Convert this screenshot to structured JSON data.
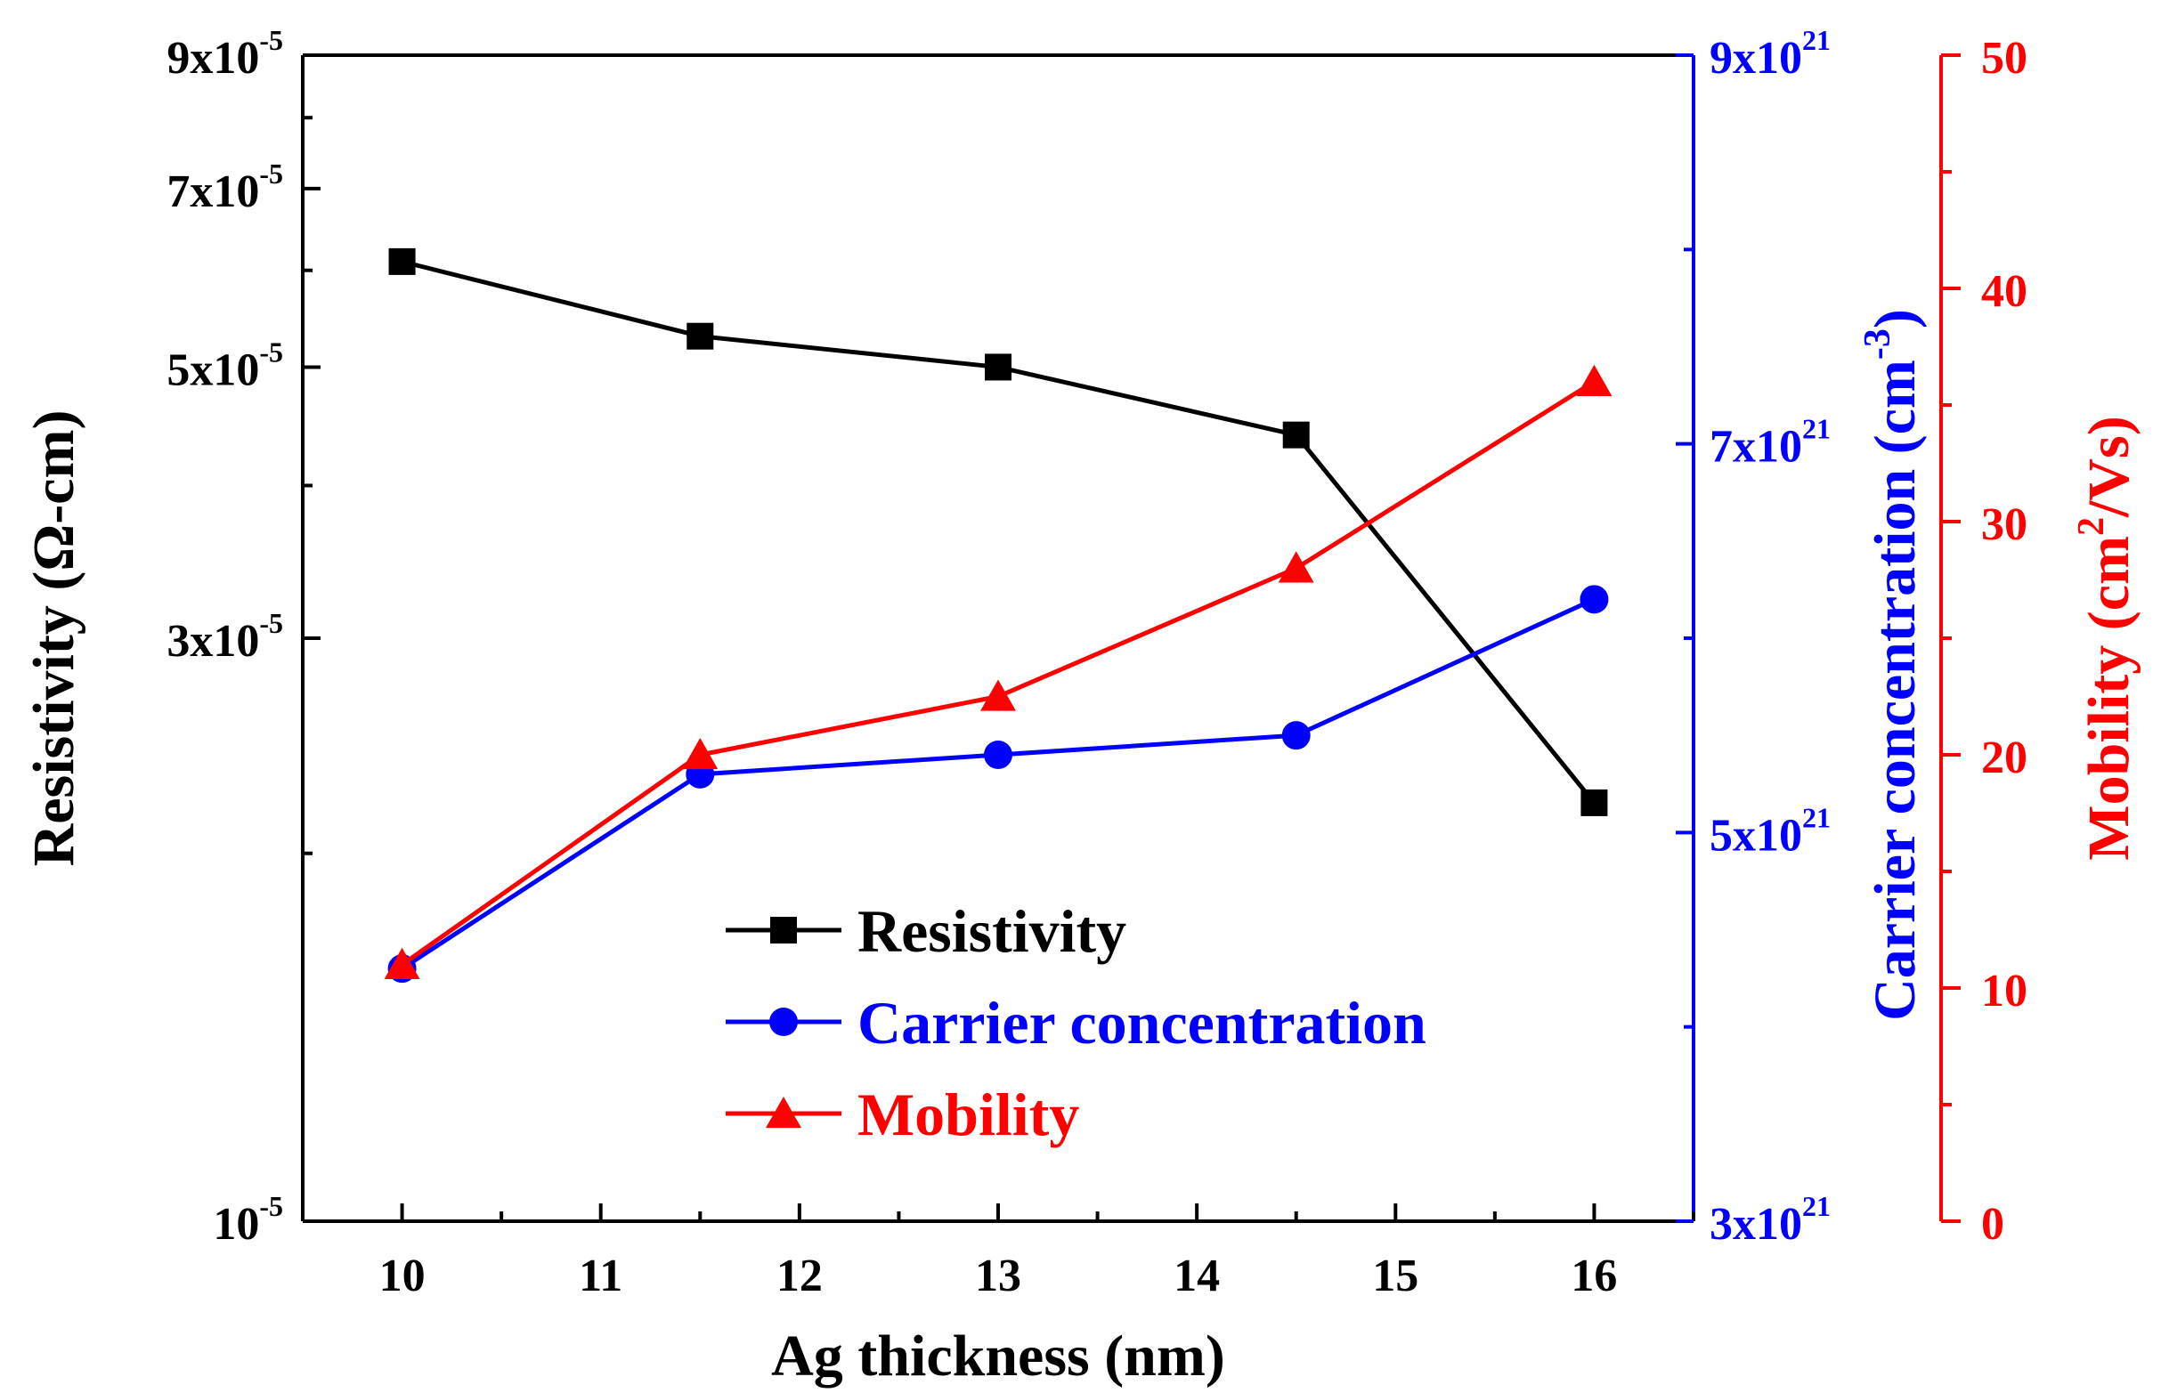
{
  "chart_data": {
    "type": "line",
    "x": [
      10,
      11.5,
      13,
      14.5,
      16
    ],
    "xlabel": "Ag thickness (nm)",
    "xlim": [
      9.5,
      16.5
    ],
    "xticks": [
      10,
      11,
      12,
      13,
      14,
      15,
      16
    ],
    "series": [
      {
        "name": "Resistivity",
        "axis": "left",
        "color": "#000000",
        "marker": "square",
        "values": [
          6.1e-05,
          5.3e-05,
          5e-05,
          4.4e-05,
          2.2e-05
        ]
      },
      {
        "name": "Carrier concentration",
        "axis": "right1",
        "color": "#0000ff",
        "marker": "circle",
        "values": [
          4.3e+21,
          5.3e+21,
          5.4e+21,
          5.5e+21,
          6.2e+21
        ]
      },
      {
        "name": "Mobility",
        "axis": "right2",
        "color": "#ff0000",
        "marker": "triangle",
        "values": [
          11,
          20,
          22.5,
          28,
          36
        ]
      }
    ],
    "axes": {
      "left": {
        "label": "Resistivity (Ω-cm)",
        "scale": "log",
        "ylim": [
          1e-05,
          9e-05
        ],
        "ticks": [
          {
            "value": 1e-05,
            "base": "10",
            "exp": "-5"
          },
          {
            "value": 3e-05,
            "base": "3x10",
            "exp": "-5"
          },
          {
            "value": 5e-05,
            "base": "5x10",
            "exp": "-5"
          },
          {
            "value": 7e-05,
            "base": "7x10",
            "exp": "-5"
          },
          {
            "value": 9e-05,
            "base": "9x10",
            "exp": "-5"
          }
        ],
        "color": "#000000"
      },
      "right1": {
        "label_parts": [
          "Carrier concentration (cm",
          "-3",
          ")"
        ],
        "scale": "linear",
        "ylim": [
          3e+21,
          9e+21
        ],
        "ticks": [
          {
            "value": 3e+21,
            "base": "3x10",
            "exp": "21"
          },
          {
            "value": 5e+21,
            "base": "5x10",
            "exp": "21"
          },
          {
            "value": 7e+21,
            "base": "7x10",
            "exp": "21"
          },
          {
            "value": 9e+21,
            "base": "9x10",
            "exp": "21"
          }
        ],
        "color": "#0000ff"
      },
      "right2": {
        "label_parts": [
          "Mobility (cm",
          "2",
          "/Vs)"
        ],
        "scale": "linear",
        "ylim": [
          0,
          50
        ],
        "ticks": [
          "0",
          "10",
          "20",
          "30",
          "40",
          "50"
        ],
        "color": "#ff0000"
      }
    },
    "legend": {
      "placement": "lower-center",
      "entries": [
        "Resistivity",
        "Carrier concentration",
        "Mobility"
      ]
    },
    "grid": false
  }
}
